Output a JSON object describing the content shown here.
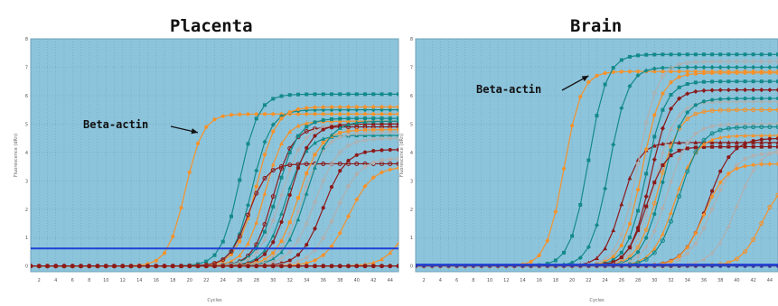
{
  "chart_data": [
    {
      "type": "line",
      "title": "Placenta",
      "xlabel": "Cycles",
      "ylabel": "Fluorescence (dRn)",
      "xlim": [
        1,
        45
      ],
      "ylim": [
        -0.2,
        8
      ],
      "xticks": [
        2,
        4,
        6,
        8,
        10,
        12,
        14,
        16,
        18,
        20,
        22,
        24,
        26,
        28,
        30,
        32,
        34,
        36,
        38,
        40,
        42,
        44
      ],
      "yticks": [
        0,
        1,
        2,
        3,
        4,
        5,
        6,
        7,
        8
      ],
      "threshold": 0.62,
      "grid": true,
      "annotation": {
        "text": "Beta-actin",
        "target": {
          "x": 21,
          "y": 4.7
        }
      },
      "series": [
        {
          "color": "#f5922b",
          "ct": 19.5,
          "plateau": 5.35,
          "k": 0.95
        },
        {
          "color": "#138a8a",
          "ct": 26.0,
          "plateau": 6.05,
          "k": 0.9
        },
        {
          "color": "#138a8a",
          "ct": 27.5,
          "plateau": 5.5,
          "k": 0.9
        },
        {
          "color": "#f5922b",
          "ct": 29.0,
          "plateau": 5.1,
          "k": 0.85
        },
        {
          "color": "#8b1a1a",
          "ct": 30.0,
          "plateau": 4.9,
          "k": 0.85
        },
        {
          "color": "#f5922b",
          "ct": 28.0,
          "plateau": 5.6,
          "k": 0.85
        },
        {
          "color": "#138a8a",
          "ct": 30.5,
          "plateau": 5.2,
          "k": 0.8
        },
        {
          "color": "#b0b0b0",
          "ct": 31.0,
          "plateau": 5.0,
          "k": 0.75
        },
        {
          "color": "#138a8a",
          "ct": 31.5,
          "plateau": 4.6,
          "k": 0.8
        },
        {
          "color": "#8b1a1a",
          "ct": 27.0,
          "plateau": 3.6,
          "k": 0.9
        },
        {
          "color": "#8b1a1a",
          "ct": 32.0,
          "plateau": 5.0,
          "k": 0.8
        },
        {
          "color": "#f5922b",
          "ct": 33.0,
          "plateau": 4.8,
          "k": 0.75
        },
        {
          "color": "#b0b0b0",
          "ct": 33.5,
          "plateau": 4.7,
          "k": 0.75
        },
        {
          "color": "#138a8a",
          "ct": 34.0,
          "plateau": 5.1,
          "k": 0.75
        },
        {
          "color": "#b0b0b0",
          "ct": 35.0,
          "plateau": 4.5,
          "k": 0.7
        },
        {
          "color": "#8b1a1a",
          "ct": 36.0,
          "plateau": 4.1,
          "k": 0.75
        },
        {
          "color": "#b0b0b0",
          "ct": 37.5,
          "plateau": 3.8,
          "k": 0.7
        },
        {
          "color": "#f5922b",
          "ct": 39.0,
          "plateau": 3.5,
          "k": 0.7
        },
        {
          "color": "#f5922b",
          "ct": 45.5,
          "plateau": 2.0,
          "k": 0.8
        },
        {
          "color": "#8b1a1a",
          "ct": 99,
          "plateau": 0,
          "k": 1
        },
        {
          "color": "#8b1a1a",
          "ct": 99,
          "plateau": 0,
          "k": 1
        }
      ]
    },
    {
      "type": "line",
      "title": "Brain",
      "xlabel": "Cycles",
      "ylabel": "Fluorescence (dRn)",
      "xlim": [
        1,
        45
      ],
      "ylim": [
        -0.2,
        8
      ],
      "xticks": [
        2,
        4,
        6,
        8,
        10,
        12,
        14,
        16,
        18,
        20,
        22,
        24,
        26,
        28,
        30,
        32,
        34,
        36,
        38,
        40,
        42,
        44
      ],
      "yticks": [
        0,
        1,
        2,
        3,
        4,
        5,
        6,
        7,
        8
      ],
      "threshold": 0.05,
      "grid": true,
      "annotation": {
        "text": "Beta-actin",
        "target": {
          "x": 22,
          "y": 6.7
        }
      },
      "series": [
        {
          "color": "#f5922b",
          "ct": 19.0,
          "plateau": 6.85,
          "k": 0.95
        },
        {
          "color": "#138a8a",
          "ct": 22.0,
          "plateau": 7.45,
          "k": 0.9
        },
        {
          "color": "#138a8a",
          "ct": 24.5,
          "plateau": 7.0,
          "k": 0.9
        },
        {
          "color": "#8b1a1a",
          "ct": 26.0,
          "plateau": 4.35,
          "k": 0.9
        },
        {
          "color": "#b0b0b0",
          "ct": 28.0,
          "plateau": 7.2,
          "k": 0.85
        },
        {
          "color": "#f5922b",
          "ct": 28.5,
          "plateau": 6.8,
          "k": 0.85
        },
        {
          "color": "#138a8a",
          "ct": 29.0,
          "plateau": 6.5,
          "k": 0.85
        },
        {
          "color": "#8b1a1a",
          "ct": 29.5,
          "plateau": 6.2,
          "k": 0.85
        },
        {
          "color": "#b0b0b0",
          "ct": 30.0,
          "plateau": 5.8,
          "k": 0.8
        },
        {
          "color": "#f5922b",
          "ct": 30.5,
          "plateau": 5.5,
          "k": 0.8
        },
        {
          "color": "#138a8a",
          "ct": 31.0,
          "plateau": 5.9,
          "k": 0.8
        },
        {
          "color": "#8b1a1a",
          "ct": 29.0,
          "plateau": 4.2,
          "k": 0.85
        },
        {
          "color": "#b0b0b0",
          "ct": 31.5,
          "plateau": 5.0,
          "k": 0.75
        },
        {
          "color": "#f5922b",
          "ct": 32.5,
          "plateau": 4.6,
          "k": 0.75
        },
        {
          "color": "#138a8a",
          "ct": 33.0,
          "plateau": 4.9,
          "k": 0.75
        },
        {
          "color": "#8b1a1a",
          "ct": 36.5,
          "plateau": 4.5,
          "k": 0.7
        },
        {
          "color": "#b0b0b0",
          "ct": 37.0,
          "plateau": 4.0,
          "k": 0.7
        },
        {
          "color": "#f5922b",
          "ct": 36.0,
          "plateau": 3.6,
          "k": 0.75
        },
        {
          "color": "#b0b0b0",
          "ct": 40.0,
          "plateau": 4.2,
          "k": 0.7
        },
        {
          "color": "#f5922b",
          "ct": 43.0,
          "plateau": 3.0,
          "k": 0.8
        },
        {
          "color": "#3a3aa0",
          "ct": 99,
          "plateau": 0,
          "k": 1
        }
      ]
    }
  ]
}
